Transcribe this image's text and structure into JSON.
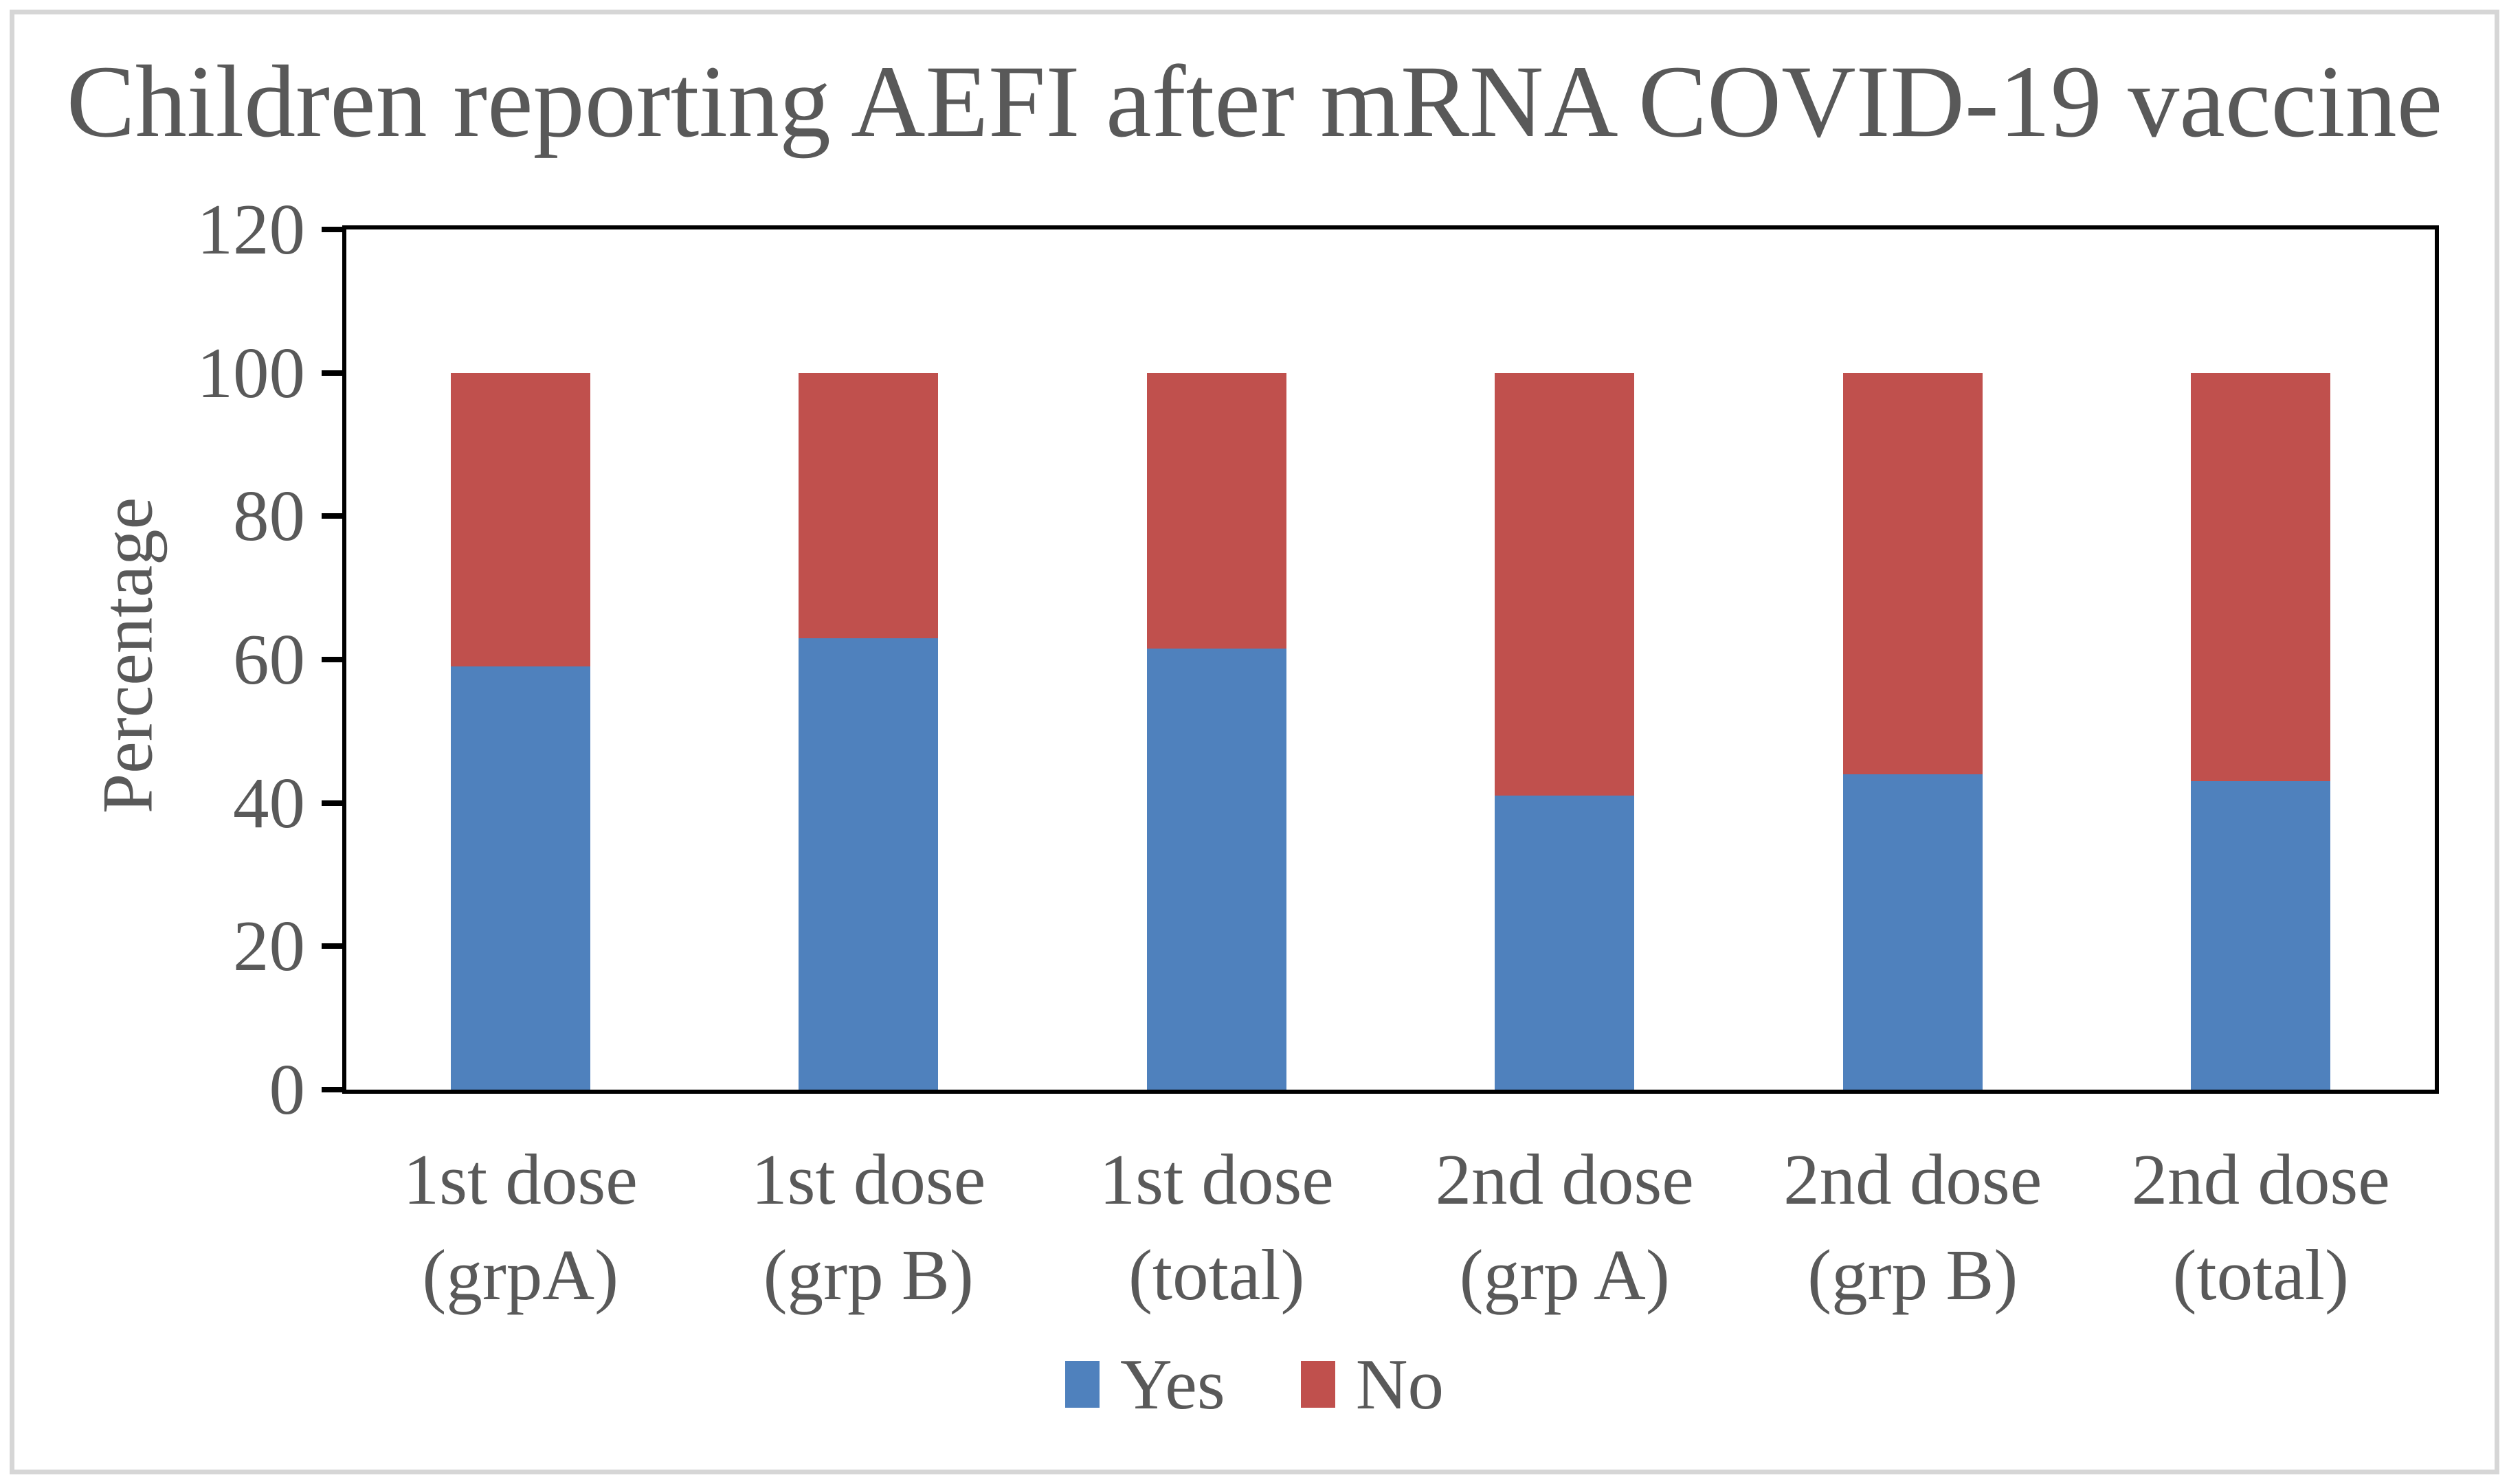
{
  "figure": {
    "background_color": "#FFFFFF",
    "outer_border_color": "#D6D6D6"
  },
  "chart_data": {
    "type": "bar",
    "stacked": true,
    "title": "Children reporting AEFI after mRNA COVID-19 vaccine",
    "xlabel": "",
    "ylabel": "Percentage",
    "categories": [
      "1st dose\n(grpA)",
      "1st dose\n(grp B)",
      "1st dose\n(total)",
      "2nd dose\n(grp A)",
      "2nd dose\n(grp B)",
      "2nd dose\n(total)"
    ],
    "series": [
      {
        "name": "Yes",
        "color": "#4F81BD",
        "values": [
          59,
          63,
          61.5,
          41,
          44,
          43
        ]
      },
      {
        "name": "No",
        "color": "#C0504D",
        "values": [
          41,
          37,
          38.5,
          59,
          56,
          57
        ]
      }
    ],
    "y_axis": {
      "min": 0,
      "max": 120,
      "tick_step": 20,
      "ticks": [
        0,
        20,
        40,
        60,
        80,
        100,
        120
      ]
    },
    "grid": false,
    "legend_position": "bottom",
    "text_color": "#595959",
    "axis_color": "#000000"
  }
}
